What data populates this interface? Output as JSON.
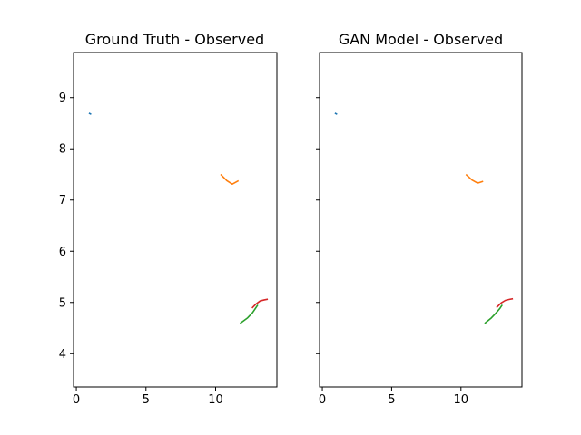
{
  "chart_data": [
    {
      "type": "line",
      "title": "Ground Truth - Observed",
      "xlabel": "",
      "ylabel": "",
      "xlim": [
        -0.2,
        14.4
      ],
      "ylim": [
        3.35,
        9.88
      ],
      "xticks": [
        0,
        5,
        10
      ],
      "yticks": [
        4,
        5,
        6,
        7,
        8,
        9
      ],
      "show_yticklabels": true,
      "grid": false,
      "series": [
        {
          "color": "#1f77b4",
          "x": [
            0.95,
            1.02
          ],
          "y": [
            8.69,
            8.68
          ]
        },
        {
          "color": "#ff7f0e",
          "x": [
            10.4,
            10.8,
            11.2,
            11.6
          ],
          "y": [
            7.49,
            7.38,
            7.31,
            7.37
          ]
        },
        {
          "color": "#2ca02c",
          "x": [
            11.8,
            12.3,
            12.65,
            12.85,
            13.0
          ],
          "y": [
            4.6,
            4.7,
            4.8,
            4.88,
            4.94
          ]
        },
        {
          "color": "#d62728",
          "x": [
            12.65,
            12.9,
            13.2,
            13.5,
            13.7
          ],
          "y": [
            4.9,
            4.97,
            5.03,
            5.05,
            5.06
          ]
        }
      ]
    },
    {
      "type": "line",
      "title": "GAN Model - Observed",
      "xlabel": "",
      "ylabel": "",
      "xlim": [
        -0.2,
        14.4
      ],
      "ylim": [
        3.35,
        9.88
      ],
      "xticks": [
        0,
        5,
        10
      ],
      "yticks": [
        4,
        5,
        6,
        7,
        8,
        9
      ],
      "show_yticklabels": false,
      "grid": false,
      "series": [
        {
          "color": "#1f77b4",
          "x": [
            0.95,
            1.02
          ],
          "y": [
            8.69,
            8.68
          ]
        },
        {
          "color": "#ff7f0e",
          "x": [
            10.4,
            10.8,
            11.2,
            11.55
          ],
          "y": [
            7.49,
            7.39,
            7.33,
            7.36
          ]
        },
        {
          "color": "#2ca02c",
          "x": [
            11.75,
            12.2,
            12.55,
            12.8,
            12.95
          ],
          "y": [
            4.6,
            4.7,
            4.8,
            4.88,
            4.94
          ]
        },
        {
          "color": "#d62728",
          "x": [
            12.6,
            12.9,
            13.2,
            13.5,
            13.7
          ],
          "y": [
            4.91,
            4.99,
            5.04,
            5.06,
            5.07
          ]
        }
      ]
    }
  ]
}
